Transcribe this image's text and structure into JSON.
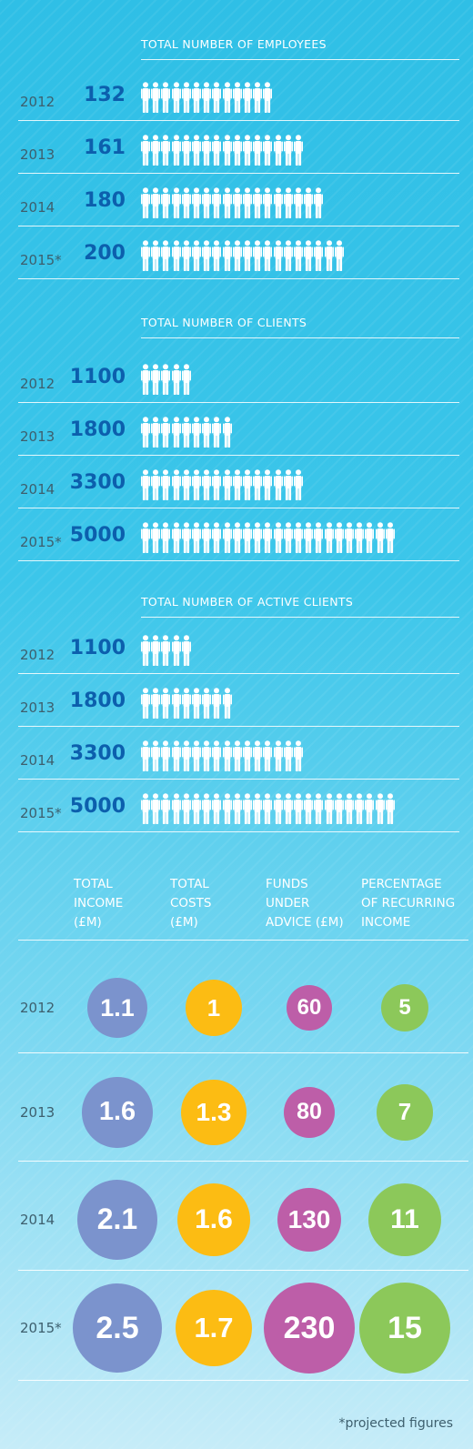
{
  "chart_data": [
    {
      "type": "bar",
      "title": "TOTAL NUMBER OF EMPLOYEES",
      "categories": [
        "2012",
        "2013",
        "2014",
        "2015*"
      ],
      "values": [
        132,
        161,
        180,
        200
      ],
      "value_labels": [
        "132",
        "161",
        "180",
        "200"
      ],
      "icon": "person-icon",
      "icon_count": [
        13,
        16,
        18,
        20
      ]
    },
    {
      "type": "bar",
      "title": "TOTAL NUMBER OF CLIENTS",
      "categories": [
        "2012",
        "2013",
        "2014",
        "2015*"
      ],
      "values": [
        1100,
        1800,
        3300,
        5000
      ],
      "value_labels": [
        "1100",
        "1800",
        "3300",
        "5000"
      ],
      "icon": "person-icon",
      "icon_count": [
        5,
        9,
        16,
        25
      ]
    },
    {
      "type": "bar",
      "title": "TOTAL NUMBER OF ACTIVE CLIENTS",
      "categories": [
        "2012",
        "2013",
        "2014",
        "2015*"
      ],
      "values": [
        1100,
        1800,
        3300,
        5000
      ],
      "value_labels": [
        "1100",
        "1800",
        "3300",
        "5000"
      ],
      "icon": "person-icon",
      "icon_count": [
        5,
        9,
        16,
        25
      ]
    },
    {
      "type": "table",
      "columns": [
        {
          "name": "TOTAL INCOME (£M)",
          "lines": [
            "TOTAL",
            "INCOME",
            "(£M)"
          ],
          "color": "#7b93cd"
        },
        {
          "name": "TOTAL COSTS (£M)",
          "lines": [
            "TOTAL",
            "COSTS",
            "(£M)"
          ],
          "color": "#fcbc13"
        },
        {
          "name": "FUNDS UNDER ADVICE (£M)",
          "lines": [
            "FUNDS",
            "UNDER",
            "ADVICE (£M)"
          ],
          "color": "#bd5ea8"
        },
        {
          "name": "PERCENTAGE OF RECURRING INCOME",
          "lines": [
            "PERCENTAGE",
            "OF RECURRING",
            "INCOME"
          ],
          "color": "#8cc85a"
        }
      ],
      "categories": [
        "2012",
        "2013",
        "2014",
        "2015*"
      ],
      "series": [
        {
          "name": "TOTAL INCOME (£M)",
          "values": [
            1.1,
            1.6,
            2.1,
            2.5
          ],
          "labels": [
            "1.1",
            "1.6",
            "2.1",
            "2.5"
          ]
        },
        {
          "name": "TOTAL COSTS (£M)",
          "values": [
            1,
            1.3,
            1.6,
            1.7
          ],
          "labels": [
            "1",
            "1.3",
            "1.6",
            "1.7"
          ]
        },
        {
          "name": "FUNDS UNDER ADVICE (£M)",
          "values": [
            60,
            80,
            130,
            230
          ],
          "labels": [
            "60",
            "80",
            "130",
            "230"
          ]
        },
        {
          "name": "PERCENTAGE OF RECURRING INCOME",
          "values": [
            5,
            7,
            11,
            15
          ],
          "labels": [
            "5",
            "7",
            "11",
            "15"
          ]
        }
      ]
    }
  ],
  "footnote": "*projected figures",
  "colors": {
    "value_text": "#0c5fad",
    "year_text": "#3d5f6e",
    "icon": "#ffffff"
  }
}
